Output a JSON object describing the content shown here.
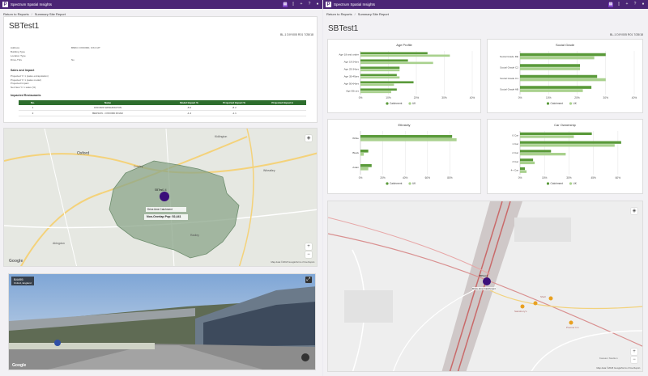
{
  "app": {
    "name": "Spectrum Spatial Insights"
  },
  "toolbar_icons": [
    "app-switch-icon",
    "bookmark-icon",
    "plus-icon",
    "help-icon",
    "user-icon"
  ],
  "breadcrumb": {
    "back": "Return to Reports",
    "separator": "/",
    "current": "Summary Site Report"
  },
  "report": {
    "title": "SBTest1",
    "ref": "BL-1 DIY/005 R01 7/28/18",
    "fields": [
      {
        "label": "Address",
        "value": "BMKC OXFORD, OX4 4JT"
      },
      {
        "label": "Building Type",
        "value": ""
      },
      {
        "label": "Location Type",
        "value": ""
      },
      {
        "label": "Drive-Thru",
        "value": "No"
      }
    ],
    "sales_section": "Sales and Impact",
    "sales_lines": [
      "Projected Yr 1 (sales extrapolation)",
      "Projected Yr 1 (sales model)",
      "Projected Impact",
      "Net New Yr 1 sales (%)"
    ],
    "impacted_section": "Impacted Restaurants",
    "table": {
      "headers": [
        "No.",
        "Name",
        "Model Impact %",
        "Projected Impact %",
        "Projected Impact £"
      ],
      "rows": [
        [
          "1",
          "OXFORD WASHINGTON",
          "-8.4",
          "-8.2",
          ""
        ],
        [
          "2",
          "BENSON - OXFORD ROAD",
          "-1.4",
          "-1.1",
          ""
        ]
      ]
    }
  },
  "map_left": {
    "place_labels": [
      "Oxford",
      "Kidlington",
      "Wheatley",
      "Cowley",
      "Abingdon",
      "Radley"
    ],
    "site_label": "SBTest1 4",
    "catchment_label": "Drive-time Catchment",
    "pop_label": "Non-Overlap Pop: 52,441",
    "attribution": "Map data ©2018 Google",
    "terms": "Terms of Use  Report a map error",
    "brand": "Google"
  },
  "street_view": {
    "address": "B4495",
    "sub": "Oxford, England",
    "attribution": "Google"
  },
  "charts": {
    "legend_catchment": "Catchment",
    "legend_uk": "UK",
    "colors": {
      "catchment": "#5a9a3a",
      "uk": "#a9d18e"
    }
  },
  "chart_data": [
    {
      "type": "bar",
      "orientation": "horizontal",
      "title": "Age Profile",
      "categories": [
        "Age 18 and under",
        "Age 19-24yrs",
        "Age 25-34yrs",
        "Age 35-49yrs",
        "Age 50-64yrs",
        "Age 65+yrs"
      ],
      "series": [
        {
          "name": "Catchment",
          "values": [
            24,
            17,
            14,
            13,
            19,
            13
          ]
        },
        {
          "name": "UK",
          "values": [
            32,
            26,
            14,
            14,
            12,
            11
          ]
        }
      ],
      "xlim": [
        0,
        40
      ],
      "ticks": [
        "0%",
        "10%",
        "20%",
        "30%",
        "40%"
      ]
    },
    {
      "type": "bar",
      "orientation": "horizontal",
      "title": "Social Grade",
      "categories": [
        "Social Grade DE",
        "Social Grade C2",
        "Social Grade C1",
        "Social Grade AB"
      ],
      "series": [
        {
          "name": "Catchment",
          "values": [
            30,
            21,
            27,
            25
          ]
        },
        {
          "name": "UK",
          "values": [
            26,
            21,
            30,
            22
          ]
        }
      ],
      "xlim": [
        0,
        40
      ],
      "ticks": [
        "0%",
        "10%",
        "20%",
        "30%",
        "40%"
      ]
    },
    {
      "type": "bar",
      "orientation": "horizontal",
      "title": "Ethnicity",
      "categories": [
        "White",
        "Black",
        "Asian"
      ],
      "series": [
        {
          "name": "Catchment",
          "values": [
            82,
            7,
            10
          ]
        },
        {
          "name": "UK",
          "values": [
            86,
            3,
            7
          ]
        }
      ],
      "xlim": [
        0,
        100
      ],
      "ticks": [
        "0%",
        "20%",
        "40%",
        "60%",
        "80%"
      ]
    },
    {
      "type": "bar",
      "orientation": "horizontal",
      "title": "Car Ownership",
      "categories": [
        "0 Car",
        "1 Car",
        "2 Car",
        "3 Car",
        "4+ Car"
      ],
      "series": [
        {
          "name": "Catchment",
          "values": [
            44,
            62,
            19,
            8,
            3
          ]
        },
        {
          "name": "UK",
          "values": [
            33,
            58,
            28,
            9,
            4
          ]
        }
      ],
      "xlim": [
        0,
        70
      ],
      "ticks": [
        "0%",
        "15%",
        "30%",
        "45%",
        "60%"
      ]
    }
  ],
  "map_right": {
    "site_label": "SBTest1",
    "catchment_label": "Drive-time Catchment",
    "place_labels": [
      "Sainsbury's",
      "Shell",
      "Premier Inn",
      "Kassam Stadium"
    ],
    "attribution": "Map data ©2018 Google",
    "terms": "Terms of Use  Report a map error"
  }
}
